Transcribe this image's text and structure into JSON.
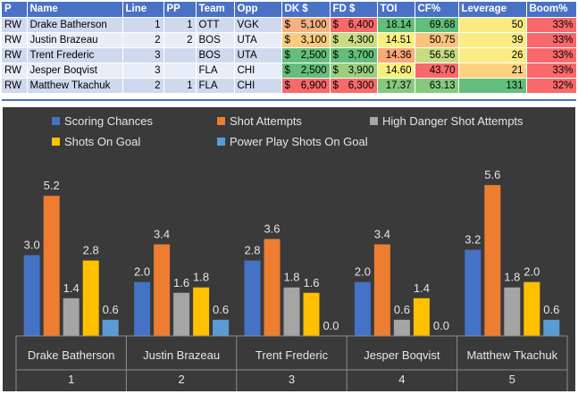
{
  "table": {
    "headers": [
      "P",
      "Name",
      "Line",
      "PP",
      "Team",
      "Opp",
      "DK $",
      "FD $",
      "TOI",
      "CF%",
      "Leverage",
      "Boom%"
    ],
    "rows": [
      {
        "pos": "RW",
        "name": "Drake Batherson",
        "line": "1",
        "pp": "1",
        "team": "OTT",
        "opp": "VGK",
        "dk": "5,100",
        "fd": "6,400",
        "toi": "18.14",
        "cf": "69.68",
        "leverage": "50",
        "boom": "33%"
      },
      {
        "pos": "RW",
        "name": "Justin Brazeau",
        "line": "2",
        "pp": "2",
        "team": "BOS",
        "opp": "UTA",
        "dk": "3,100",
        "fd": "4,300",
        "toi": "14.51",
        "cf": "50.75",
        "leverage": "39",
        "boom": "33%"
      },
      {
        "pos": "RW",
        "name": "Trent Frederic",
        "line": "3",
        "pp": "",
        "team": "BOS",
        "opp": "UTA",
        "dk": "2,500",
        "fd": "3,700",
        "toi": "14.36",
        "cf": "56.56",
        "leverage": "26",
        "boom": "33%"
      },
      {
        "pos": "RW",
        "name": "Jesper Boqvist",
        "line": "3",
        "pp": "",
        "team": "FLA",
        "opp": "CHI",
        "dk": "2,500",
        "fd": "3,900",
        "toi": "14.60",
        "cf": "43.70",
        "leverage": "21",
        "boom": "33%"
      },
      {
        "pos": "RW",
        "name": "Matthew Tkachuk",
        "line": "2",
        "pp": "1",
        "team": "FLA",
        "opp": "CHI",
        "dk": "6,900",
        "fd": "6,300",
        "toi": "17.37",
        "cf": "63.13",
        "leverage": "131",
        "boom": "32%"
      }
    ],
    "currency_symbol": "$",
    "cell_colors": {
      "dk": [
        "#f4b183",
        "#f8cb7f",
        "#63be7b",
        "#63be7b",
        "#f8696b"
      ],
      "fd": [
        "#f8696b",
        "#c9dc82",
        "#63be7b",
        "#9bcf7e",
        "#f8696b"
      ],
      "toi": [
        "#63be7b",
        "#f8f07e",
        "#f9a877",
        "#f8f07e",
        "#86c97d"
      ],
      "cf": [
        "#63be7b",
        "#fcc27c",
        "#c6dc81",
        "#f8696b",
        "#86c97d"
      ],
      "leverage": [
        "#fbeb84",
        "#fbeb84",
        "#fbeb84",
        "#fdd17f",
        "#63be7b"
      ],
      "boom": [
        "#f8696b",
        "#f8696b",
        "#f8696b",
        "#f8696b",
        "#f8696b"
      ]
    }
  },
  "chart_data": {
    "type": "bar",
    "categories": [
      {
        "name": "Drake Batherson",
        "index": "1"
      },
      {
        "name": "Justin Brazeau",
        "index": "2"
      },
      {
        "name": "Trent Frederic",
        "index": "3"
      },
      {
        "name": "Jesper Boqvist",
        "index": "4"
      },
      {
        "name": "Matthew Tkachuk",
        "index": "5"
      }
    ],
    "series": [
      {
        "name": "Scoring Chances",
        "color": "#4472c4",
        "values": [
          3.0,
          2.0,
          2.8,
          2.0,
          3.2
        ]
      },
      {
        "name": "Shot Attempts",
        "color": "#ed7d31",
        "values": [
          5.2,
          3.4,
          3.6,
          3.4,
          5.6
        ]
      },
      {
        "name": "High Danger Shot Attempts",
        "color": "#a5a5a5",
        "values": [
          1.4,
          1.6,
          1.8,
          0.6,
          1.8
        ]
      },
      {
        "name": "Shots On Goal",
        "color": "#ffc000",
        "values": [
          2.8,
          1.8,
          1.6,
          1.4,
          2.0
        ]
      },
      {
        "name": "Power Play Shots On Goal",
        "color": "#5b9bd5",
        "values": [
          0.6,
          0.6,
          0.0,
          0.0,
          0.6
        ]
      }
    ],
    "ylim": [
      0,
      6.5
    ],
    "grid": false,
    "legend_position": "top",
    "value_format_decimals": 1,
    "background": "#3a3a3a",
    "title": "",
    "xlabel": "",
    "ylabel": ""
  }
}
